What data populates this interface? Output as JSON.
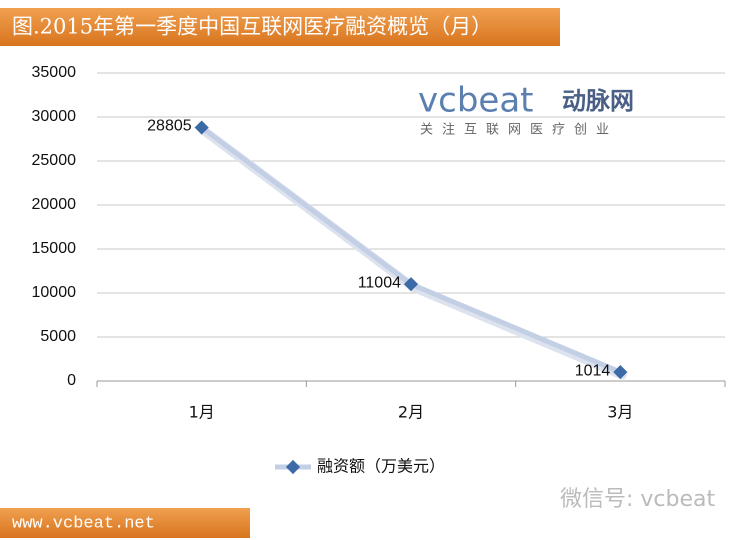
{
  "chart_data": {
    "type": "line",
    "title": "图.2015年第一季度中国互联网医疗融资概览（月）",
    "categories": [
      "1月",
      "2月",
      "3月"
    ],
    "series": [
      {
        "name": "融资额（万美元）",
        "color": "#3c6aa6",
        "values": [
          28805,
          11004,
          1014
        ]
      }
    ],
    "ylim": [
      0,
      35000
    ],
    "yticks": [
      0,
      5000,
      10000,
      15000,
      20000,
      25000,
      30000,
      35000
    ],
    "grid": true,
    "legend": "bottom"
  },
  "watermark": {
    "logo": "vcbeat",
    "brand": "动脉网",
    "slogan": "关注互联网医疗创业",
    "wechat": "微信号: vcbeat"
  },
  "footer": "www.vcbeat.net"
}
